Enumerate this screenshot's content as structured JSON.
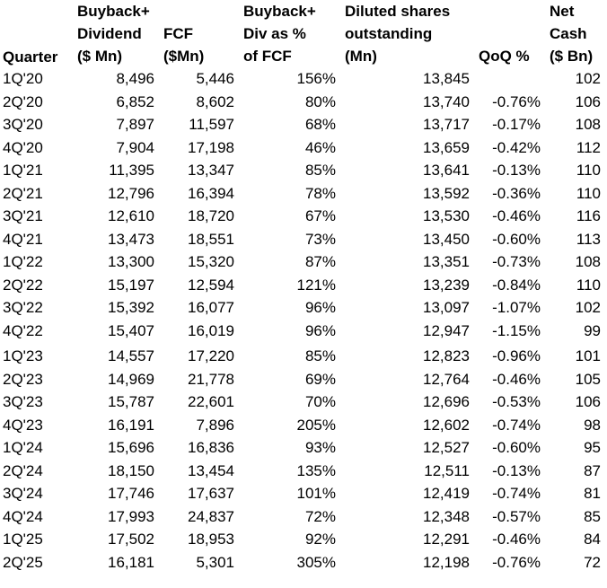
{
  "chart_data": {
    "type": "table",
    "columns": [
      {
        "key": "quarter",
        "lines": [
          "Quarter"
        ]
      },
      {
        "key": "buyback_div",
        "lines": [
          "Buyback+",
          "Dividend",
          "($ Mn)"
        ]
      },
      {
        "key": "fcf",
        "lines": [
          "FCF",
          "($Mn)"
        ]
      },
      {
        "key": "pct_fcf",
        "lines": [
          "Buyback+",
          "Div as %",
          "of FCF"
        ]
      },
      {
        "key": "shares",
        "lines": [
          "Diluted shares",
          "outstanding",
          "(Mn)"
        ]
      },
      {
        "key": "qoq",
        "lines": [
          "QoQ %"
        ]
      },
      {
        "key": "net_cash",
        "lines": [
          "Net",
          "Cash",
          "($ Bn)"
        ]
      }
    ],
    "rows": [
      [
        "1Q'20",
        "8,496",
        "5,446",
        "156%",
        "13,845",
        "",
        "102"
      ],
      [
        "2Q'20",
        "6,852",
        "8,602",
        "80%",
        "13,740",
        "-0.76%",
        "106"
      ],
      [
        "3Q'20",
        "7,897",
        "11,597",
        "68%",
        "13,717",
        "-0.17%",
        "108"
      ],
      [
        "4Q'20",
        "7,904",
        "17,198",
        "46%",
        "13,659",
        "-0.42%",
        "112"
      ],
      [
        "1Q'21",
        "11,395",
        "13,347",
        "85%",
        "13,641",
        "-0.13%",
        "110"
      ],
      [
        "2Q'21",
        "12,796",
        "16,394",
        "78%",
        "13,592",
        "-0.36%",
        "110"
      ],
      [
        "3Q'21",
        "12,610",
        "18,720",
        "67%",
        "13,530",
        "-0.46%",
        "116"
      ],
      [
        "4Q'21",
        "13,473",
        "18,551",
        "73%",
        "13,450",
        "-0.60%",
        "113"
      ],
      [
        "1Q'22",
        "13,300",
        "15,320",
        "87%",
        "13,351",
        "-0.73%",
        "108"
      ],
      [
        "2Q'22",
        "15,197",
        "12,594",
        "121%",
        "13,239",
        "-0.84%",
        "110"
      ],
      [
        "3Q'22",
        "15,392",
        "16,077",
        "96%",
        "13,097",
        "-1.07%",
        "102"
      ],
      [
        "4Q'22",
        "15,407",
        "16,019",
        "96%",
        "12,947",
        "-1.15%",
        "99"
      ],
      [
        "1Q'23",
        "14,557",
        "17,220",
        "85%",
        "12,823",
        "-0.96%",
        "101"
      ],
      [
        "2Q'23",
        "14,969",
        "21,778",
        "69%",
        "12,764",
        "-0.46%",
        "105"
      ],
      [
        "3Q'23",
        "15,787",
        "22,601",
        "70%",
        "12,696",
        "-0.53%",
        "106"
      ],
      [
        "4Q'23",
        "16,191",
        "7,896",
        "205%",
        "12,602",
        "-0.74%",
        "98"
      ],
      [
        "1Q'24",
        "15,696",
        "16,836",
        "93%",
        "12,527",
        "-0.60%",
        "95"
      ],
      [
        "2Q'24",
        "18,150",
        "13,454",
        "135%",
        "12,511",
        "-0.13%",
        "87"
      ],
      [
        "3Q'24",
        "17,746",
        "17,637",
        "101%",
        "12,419",
        "-0.74%",
        "81"
      ],
      [
        "4Q'24",
        "17,993",
        "24,837",
        "72%",
        "12,348",
        "-0.57%",
        "85"
      ],
      [
        "1Q'25",
        "17,502",
        "18,953",
        "92%",
        "12,291",
        "-0.46%",
        "84"
      ],
      [
        "2Q'25",
        "16,181",
        "5,301",
        "305%",
        "12,198",
        "-0.76%",
        "72"
      ]
    ]
  }
}
